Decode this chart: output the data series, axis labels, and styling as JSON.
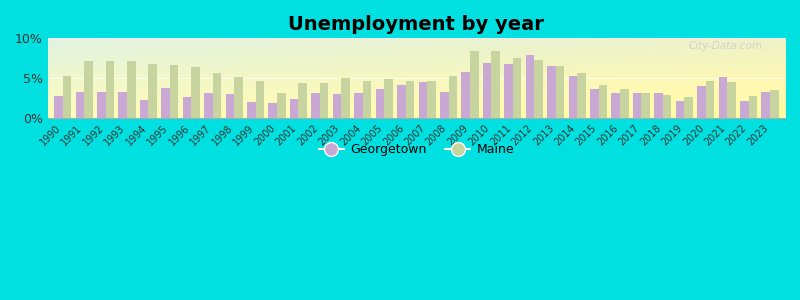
{
  "title": "Unemployment by year",
  "years": [
    1990,
    1991,
    1992,
    1993,
    1994,
    1995,
    1996,
    1997,
    1998,
    1999,
    2000,
    2001,
    2002,
    2003,
    2004,
    2005,
    2006,
    2007,
    2008,
    2009,
    2010,
    2011,
    2012,
    2013,
    2014,
    2015,
    2016,
    2017,
    2018,
    2019,
    2020,
    2021,
    2022,
    2023
  ],
  "georgetown": [
    2.8,
    3.3,
    3.3,
    3.3,
    2.3,
    3.8,
    2.6,
    3.2,
    3.0,
    2.0,
    1.9,
    2.4,
    3.1,
    3.0,
    3.2,
    3.7,
    4.2,
    4.5,
    3.3,
    5.8,
    6.9,
    6.8,
    7.9,
    6.5,
    5.3,
    3.6,
    3.2,
    3.2,
    3.2,
    2.1,
    4.0,
    5.1,
    2.1,
    3.3
  ],
  "maine": [
    5.3,
    7.2,
    7.1,
    7.2,
    6.8,
    6.6,
    6.4,
    5.6,
    5.1,
    4.7,
    3.2,
    4.4,
    4.4,
    5.0,
    4.7,
    4.9,
    4.6,
    4.6,
    5.3,
    8.4,
    8.4,
    7.5,
    7.3,
    6.5,
    5.7,
    4.2,
    3.6,
    3.2,
    2.9,
    2.7,
    4.7,
    4.5,
    2.8,
    3.5
  ],
  "georgetown_color": "#c9a8d4",
  "maine_color": "#c8d4a0",
  "outer_background": "#00e0e0",
  "title_fontsize": 14,
  "ylim": [
    0,
    10
  ],
  "ytick_labels": [
    "0%",
    "5%",
    "10%"
  ],
  "watermark": "City-Data.com"
}
